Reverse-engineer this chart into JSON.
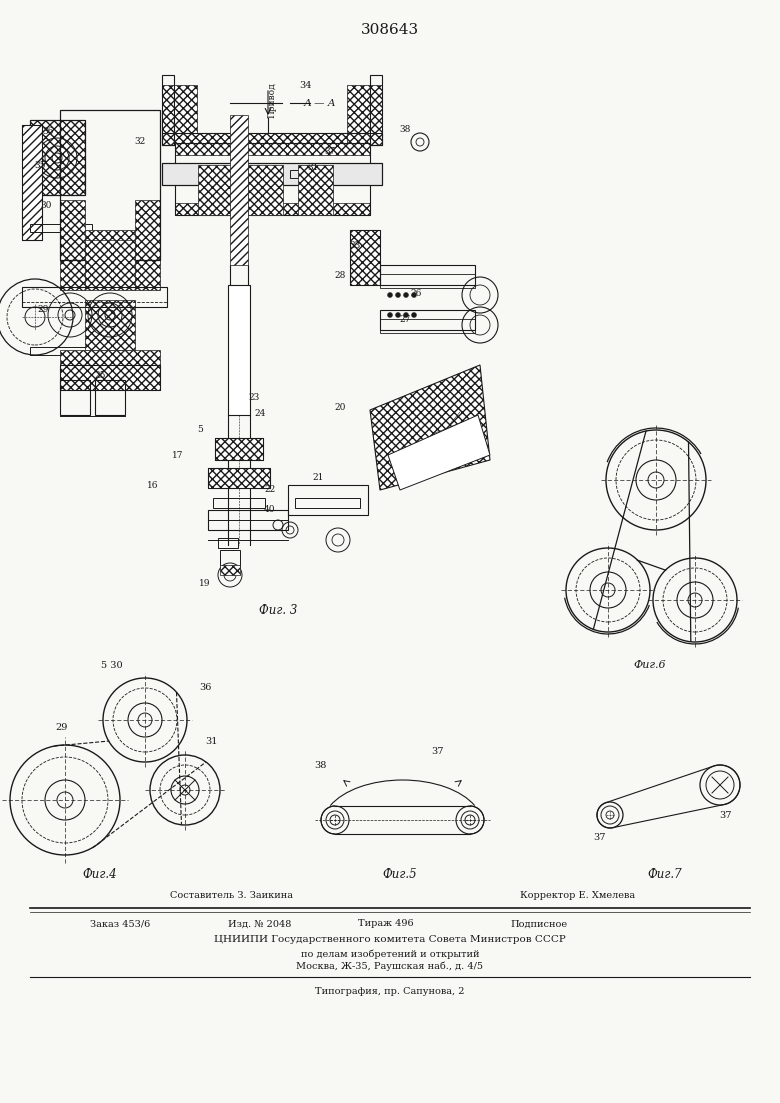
{
  "title": "308643",
  "bg_color": "#f5f5f0",
  "line_color": "#1a1a1a",
  "fig3_caption": "Фиг. 3",
  "fig4_caption": "Фиг.4",
  "fig5_caption": "Фиг.5",
  "fig6_caption": "Фиг.6",
  "fig7_caption": "Фиг.7",
  "footer_composer": "Составитель З. Заикина",
  "footer_corrector": "Корректор Е. Хмелева",
  "footer_order": "Заказ 453/6",
  "footer_izd": "Изд. № 2048",
  "footer_tirazh": "Тираж 496",
  "footer_podp": "Подписное",
  "footer_cniip": "ЦНИИПИ Государственного комитета Совета Министров СССР",
  "footer_dela": "по делам изобретений и открытий",
  "footer_moscow": "Москва, Ж-35, Раушская наб., д. 4/5",
  "footer_tip": "Типография, пр. Сапунова, 2",
  "aa_label": "А — А",
  "privod_label": "Привод"
}
